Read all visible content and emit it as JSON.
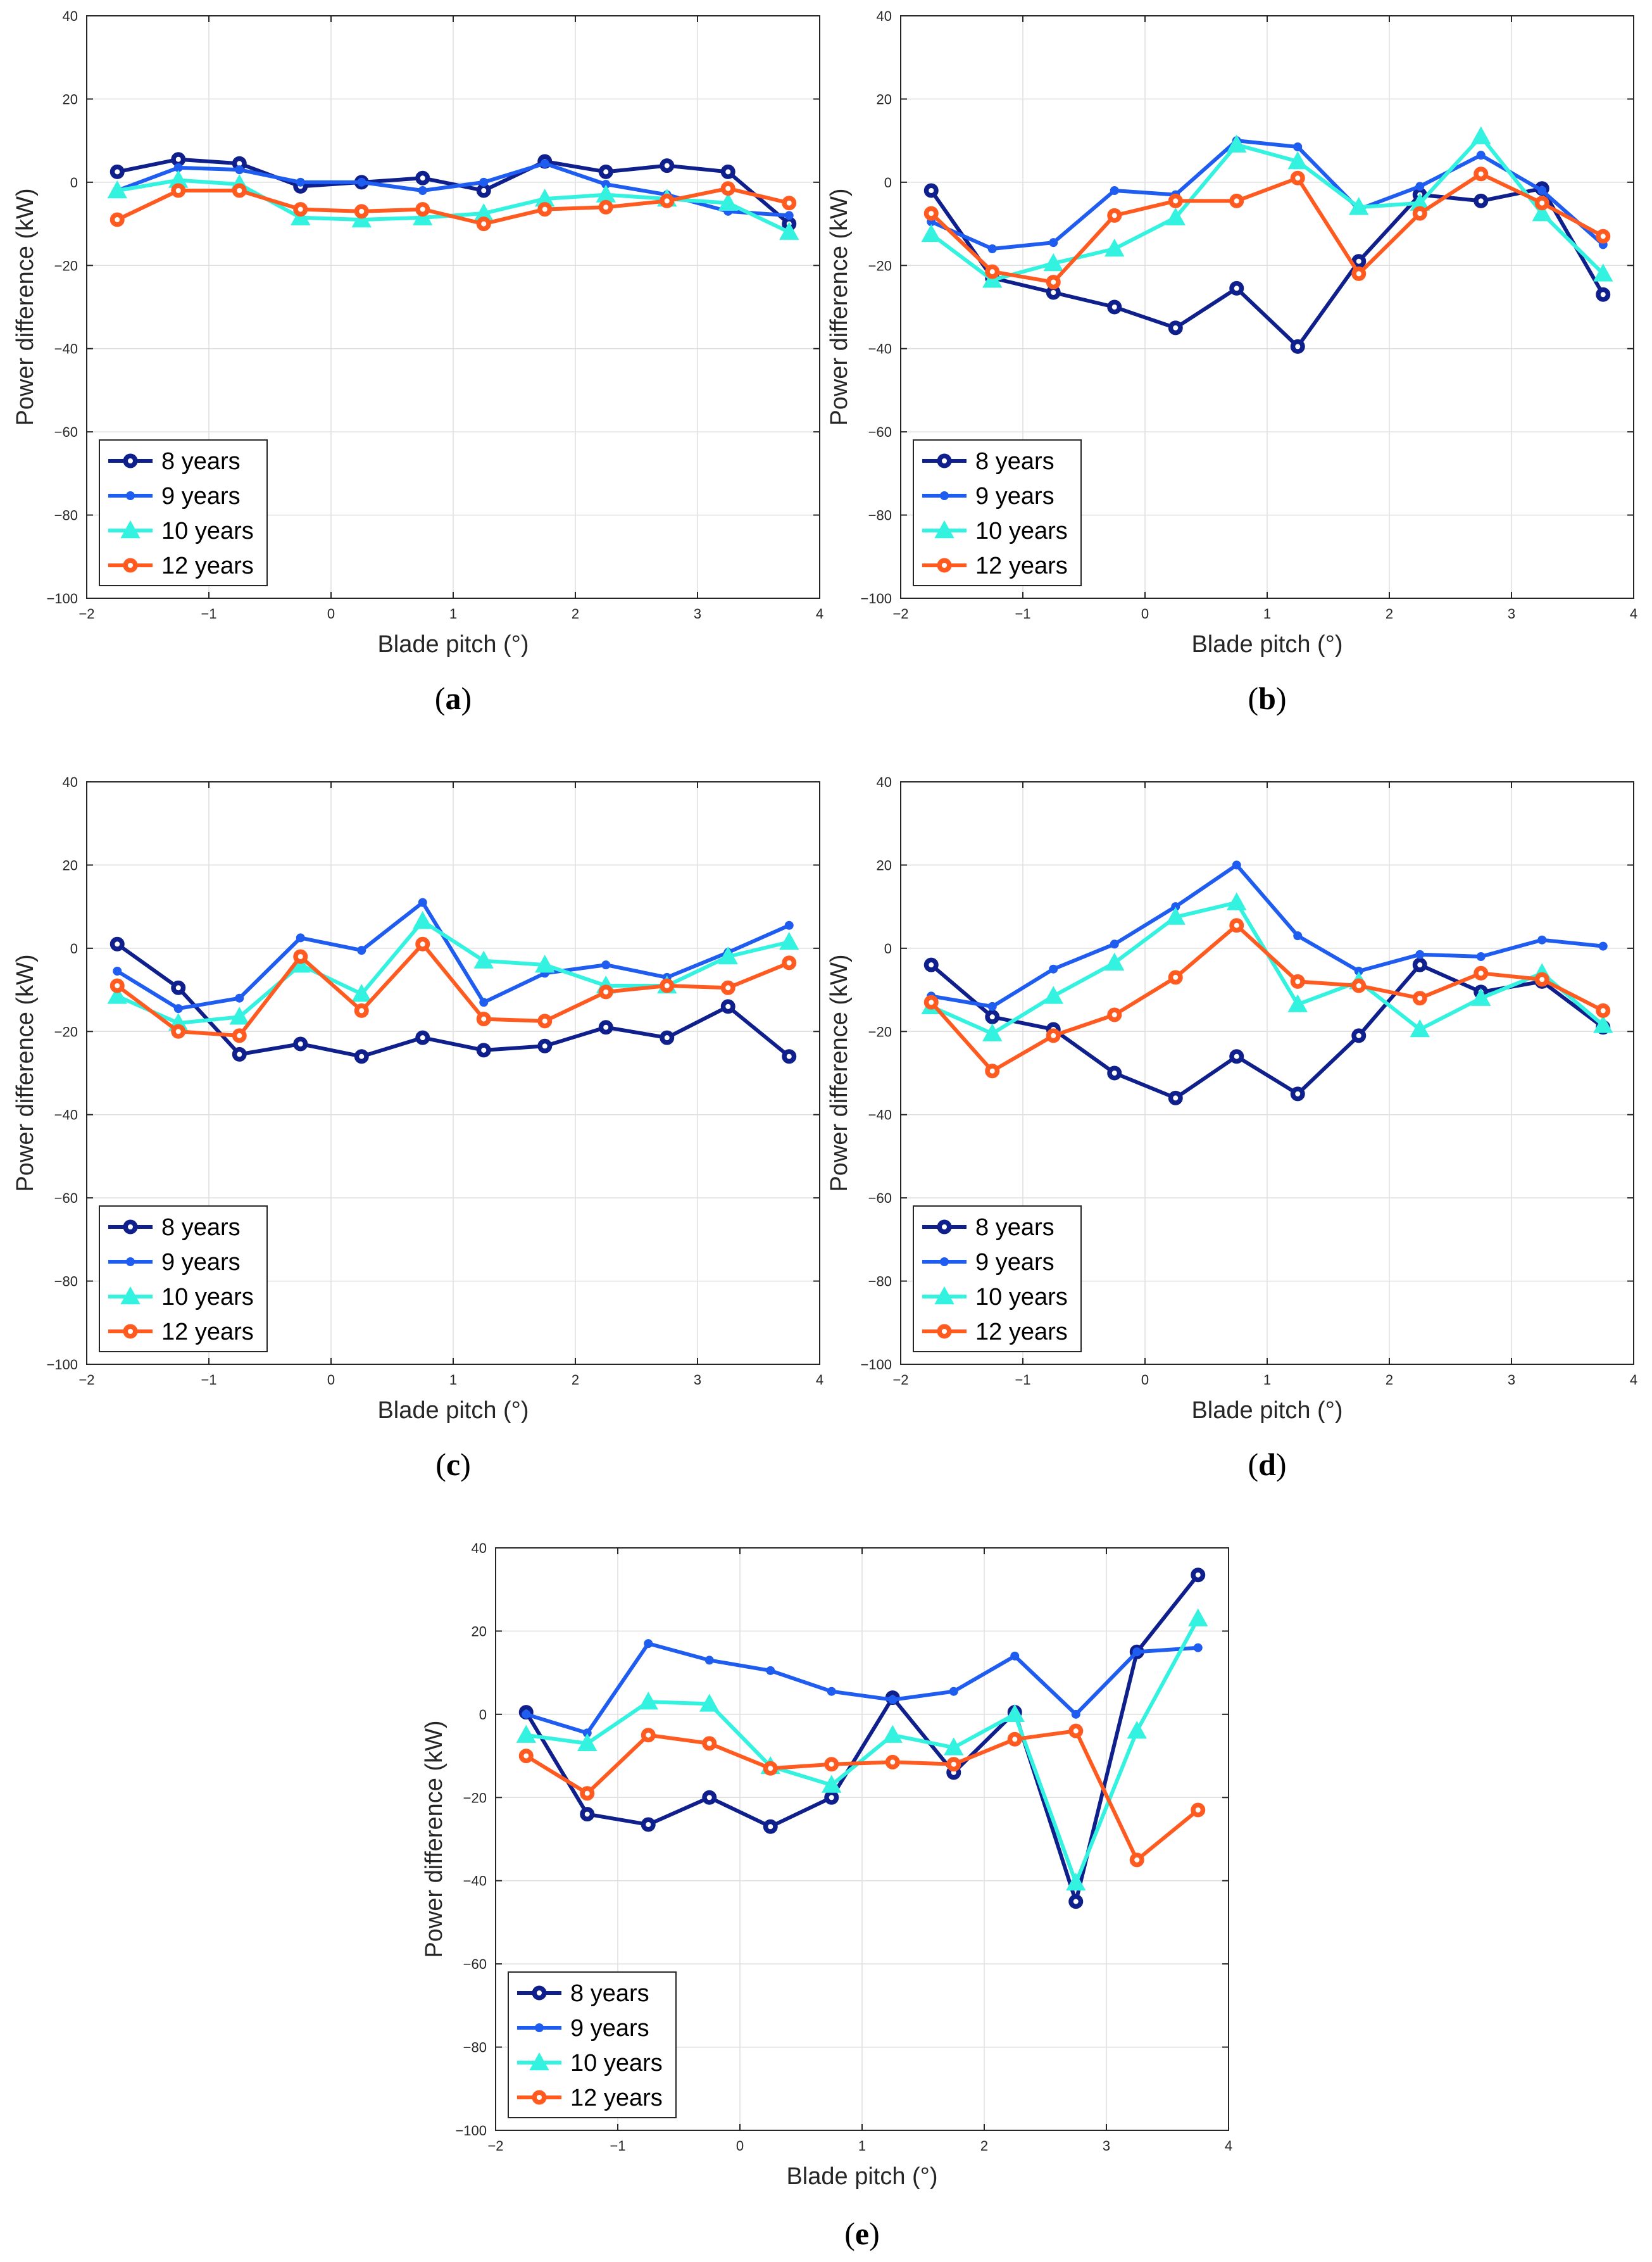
{
  "colors": {
    "8 years": "#0f1f8c",
    "9 years": "#1f5cf0",
    "10 years": "#33f2e0",
    "12 years": "#ff5a1f"
  },
  "chart_data": [
    {
      "type": "line",
      "caption": "(a)",
      "xlabel": "Blade pitch (°)",
      "ylabel": "Power difference (kW)",
      "xlim": [
        -2,
        4
      ],
      "ylim": [
        -100,
        40
      ],
      "xticks": [
        -2,
        -1,
        0,
        1,
        2,
        3,
        4
      ],
      "yticks": [
        -100,
        -80,
        -60,
        -40,
        -20,
        0,
        20,
        40
      ],
      "grid": true,
      "legend_position": "bottom-left",
      "x": [
        -1.75,
        -1.25,
        -0.75,
        -0.25,
        0.25,
        0.75,
        1.25,
        1.75,
        2.25,
        2.75,
        3.25,
        3.75
      ],
      "series": [
        {
          "name": "8 years",
          "values": [
            2.5,
            5.5,
            4.5,
            -1,
            0,
            1,
            -2,
            5,
            2.5,
            4,
            2.5,
            -10
          ]
        },
        {
          "name": "9 years",
          "values": [
            -2,
            3.5,
            3,
            0,
            0,
            -2,
            0,
            4.5,
            -0.5,
            -3,
            -7,
            -8
          ]
        },
        {
          "name": "10 years",
          "values": [
            -2,
            0.5,
            -0.5,
            -8.5,
            -9,
            -8.5,
            -7.5,
            -4,
            -3,
            -4,
            -5,
            -12
          ]
        },
        {
          "name": "12 years",
          "values": [
            -9,
            -2,
            -2,
            -6.5,
            -7,
            -6.5,
            -10,
            -6.5,
            -6,
            -4.5,
            -1.5,
            -5
          ]
        }
      ]
    },
    {
      "type": "line",
      "caption": "(b)",
      "xlabel": "Blade pitch (°)",
      "ylabel": "Power difference (kW)",
      "xlim": [
        -2,
        4
      ],
      "ylim": [
        -100,
        40
      ],
      "xticks": [
        -2,
        -1,
        0,
        1,
        2,
        3,
        4
      ],
      "yticks": [
        -100,
        -80,
        -60,
        -40,
        -20,
        0,
        20,
        40
      ],
      "grid": true,
      "legend_position": "bottom-left",
      "x": [
        -1.75,
        -1.25,
        -0.75,
        -0.25,
        0.25,
        0.75,
        1.25,
        1.75,
        2.25,
        2.75,
        3.25,
        3.75
      ],
      "series": [
        {
          "name": "8 years",
          "values": [
            -2,
            -23,
            -26.5,
            -30,
            -35,
            -25.5,
            -39.5,
            -19,
            -3,
            -4.5,
            -1.5,
            -27
          ]
        },
        {
          "name": "9 years",
          "values": [
            -9.5,
            -16,
            -14.5,
            -2,
            -3,
            10,
            8.5,
            -6.5,
            -1,
            6.5,
            -2,
            -15
          ]
        },
        {
          "name": "10 years",
          "values": [
            -12.5,
            -23.5,
            -19.5,
            -16,
            -8.5,
            9,
            5,
            -6,
            -5,
            11,
            -7.5,
            -22
          ]
        },
        {
          "name": "12 years",
          "values": [
            -7.5,
            -21.5,
            -24,
            -8,
            -4.5,
            -4.5,
            1,
            -22,
            -7.5,
            2,
            -5,
            -13
          ]
        }
      ]
    },
    {
      "type": "line",
      "caption": "(c)",
      "xlabel": "Blade pitch (°)",
      "ylabel": "Power difference (kW)",
      "xlim": [
        -2,
        4
      ],
      "ylim": [
        -100,
        40
      ],
      "xticks": [
        -2,
        -1,
        0,
        1,
        2,
        3,
        4
      ],
      "yticks": [
        -100,
        -80,
        -60,
        -40,
        -20,
        0,
        20,
        40
      ],
      "grid": true,
      "legend_position": "bottom-left",
      "x": [
        -1.75,
        -1.25,
        -0.75,
        -0.25,
        0.25,
        0.75,
        1.25,
        1.75,
        2.25,
        2.75,
        3.25,
        3.75
      ],
      "series": [
        {
          "name": "8 years",
          "values": [
            1,
            -9.5,
            -25.5,
            -23,
            -26,
            -21.5,
            -24.5,
            -23.5,
            -19,
            -21.5,
            -14,
            -26
          ]
        },
        {
          "name": "9 years",
          "values": [
            -5.5,
            -14.5,
            -12,
            2.5,
            -0.5,
            11,
            -13,
            -6,
            -4,
            -7,
            -1,
            5.5
          ]
        },
        {
          "name": "10 years",
          "values": [
            -11.5,
            -18,
            -16.5,
            -4,
            -11,
            6.5,
            -3,
            -4,
            -9,
            -9,
            -2,
            1.5
          ]
        },
        {
          "name": "12 years",
          "values": [
            -9,
            -20,
            -21,
            -2,
            -15,
            1,
            -17,
            -17.5,
            -10.5,
            -9,
            -9.5,
            -3.5
          ]
        }
      ]
    },
    {
      "type": "line",
      "caption": "(d)",
      "xlabel": "Blade pitch (°)",
      "ylabel": "Power difference (kW)",
      "xlim": [
        -2,
        4
      ],
      "ylim": [
        -100,
        40
      ],
      "xticks": [
        -2,
        -1,
        0,
        1,
        2,
        3,
        4
      ],
      "yticks": [
        -100,
        -80,
        -60,
        -40,
        -20,
        0,
        20,
        40
      ],
      "grid": true,
      "legend_position": "bottom-left",
      "x": [
        -1.75,
        -1.25,
        -0.75,
        -0.25,
        0.25,
        0.75,
        1.25,
        1.75,
        2.25,
        2.75,
        3.25,
        3.75
      ],
      "series": [
        {
          "name": "8 years",
          "values": [
            -4,
            -16.5,
            -19.5,
            -30,
            -36,
            -26,
            -35,
            -21,
            -4,
            -10.5,
            -8,
            -19
          ]
        },
        {
          "name": "9 years",
          "values": [
            -11.5,
            -14,
            -5,
            1,
            10,
            20,
            3,
            -5.5,
            -1.5,
            -2,
            2,
            0.5
          ]
        },
        {
          "name": "10 years",
          "values": [
            -14,
            -20.5,
            -11.5,
            -3.5,
            7.5,
            11,
            -13.5,
            -8,
            -19.5,
            -12,
            -6,
            -18.5
          ]
        },
        {
          "name": "12 years",
          "values": [
            -13,
            -29.5,
            -21,
            -16,
            -7,
            5.5,
            -8,
            -9,
            -12,
            -6,
            -7.5,
            -15
          ]
        }
      ]
    },
    {
      "type": "line",
      "caption": "(e)",
      "xlabel": "Blade pitch (°)",
      "ylabel": "Power difference (kW)",
      "xlim": [
        -2,
        4
      ],
      "ylim": [
        -100,
        40
      ],
      "xticks": [
        -2,
        -1,
        0,
        1,
        2,
        3,
        4
      ],
      "yticks": [
        -100,
        -80,
        -60,
        -40,
        -20,
        0,
        20,
        40
      ],
      "grid": true,
      "legend_position": "bottom-left",
      "x": [
        -1.75,
        -1.25,
        -0.75,
        -0.25,
        0.25,
        0.75,
        1.25,
        1.75,
        2.25,
        2.75,
        3.25,
        3.75
      ],
      "series": [
        {
          "name": "8 years",
          "values": [
            0.5,
            -24,
            -26.5,
            -20,
            -27,
            -20,
            4,
            -14,
            0.5,
            -45,
            15,
            33.5
          ]
        },
        {
          "name": "9 years",
          "values": [
            0,
            -4.5,
            17,
            13,
            10.5,
            5.5,
            3.5,
            5.5,
            14,
            0,
            15,
            16
          ]
        },
        {
          "name": "10 years",
          "values": [
            -5,
            -7,
            3,
            2.5,
            -12.5,
            -17,
            -5,
            -8,
            0,
            -40.5,
            -4,
            23
          ]
        },
        {
          "name": "12 years",
          "values": [
            -10,
            -19,
            -5,
            -7,
            -13,
            -12,
            -11.5,
            -12,
            -6,
            -4,
            -35,
            -23
          ]
        }
      ]
    }
  ]
}
